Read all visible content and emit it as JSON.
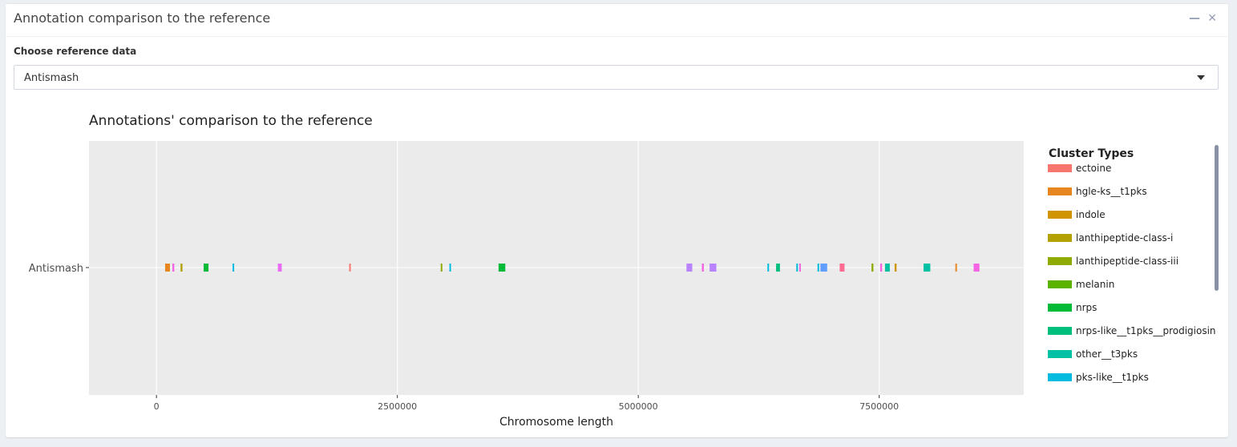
{
  "panel": {
    "title": "Annotation comparison to the reference",
    "minimize_icon": "minus-icon",
    "close_icon": "close-icon"
  },
  "reference_select": {
    "label": "Choose reference data",
    "value": "Antismash"
  },
  "chart_data": {
    "type": "scatter",
    "title": "Annotations' comparison to the reference",
    "xlabel": "Chromosome length",
    "ylabel": "",
    "xlim": [
      -700000,
      9000000
    ],
    "xticks": [
      0,
      2500000,
      5000000,
      7500000
    ],
    "xtick_labels": [
      "0",
      "2500000",
      "5000000",
      "7500000"
    ],
    "categories": [
      "Antismash"
    ],
    "grid": true,
    "legend_title": "Cluster Types",
    "legend_position": "right",
    "legend_entries": [
      {
        "name": "ectoine",
        "color": "#F8766D"
      },
      {
        "name": "hgle-ks__t1pks",
        "color": "#E7851E"
      },
      {
        "name": "indole",
        "color": "#D09400"
      },
      {
        "name": "lanthipeptide-class-i",
        "color": "#B2A100"
      },
      {
        "name": "lanthipeptide-class-iii",
        "color": "#8FAA00"
      },
      {
        "name": "melanin",
        "color": "#5BB300"
      },
      {
        "name": "nrps",
        "color": "#00BA38"
      },
      {
        "name": "nrps-like__t1pks__prodigiosin",
        "color": "#00BF7D"
      },
      {
        "name": "other__t3pks",
        "color": "#00C1A3"
      },
      {
        "name": "pks-like__t1pks",
        "color": "#00BAE0"
      }
    ],
    "regions": [
      {
        "start": 90000,
        "end": 140000,
        "color": "#E7851E"
      },
      {
        "start": 165000,
        "end": 185000,
        "color": "#F564E3"
      },
      {
        "start": 250000,
        "end": 270000,
        "color": "#B2A100"
      },
      {
        "start": 490000,
        "end": 540000,
        "color": "#00BA38"
      },
      {
        "start": 790000,
        "end": 805000,
        "color": "#00BAE0"
      },
      {
        "start": 1260000,
        "end": 1300000,
        "color": "#E76BF3"
      },
      {
        "start": 2000000,
        "end": 2015000,
        "color": "#F8766D"
      },
      {
        "start": 2950000,
        "end": 2965000,
        "color": "#8FAA00"
      },
      {
        "start": 3040000,
        "end": 3055000,
        "color": "#00BAE0"
      },
      {
        "start": 3550000,
        "end": 3620000,
        "color": "#00BA38"
      },
      {
        "start": 5500000,
        "end": 5560000,
        "color": "#B983FF"
      },
      {
        "start": 5660000,
        "end": 5680000,
        "color": "#F564E3"
      },
      {
        "start": 5740000,
        "end": 5810000,
        "color": "#B983FF"
      },
      {
        "start": 6340000,
        "end": 6355000,
        "color": "#00BAE0"
      },
      {
        "start": 6430000,
        "end": 6470000,
        "color": "#00BF7D"
      },
      {
        "start": 6640000,
        "end": 6655000,
        "color": "#00BAE0"
      },
      {
        "start": 6670000,
        "end": 6685000,
        "color": "#F564E3"
      },
      {
        "start": 6860000,
        "end": 6875000,
        "color": "#00BAE0"
      },
      {
        "start": 6890000,
        "end": 6960000,
        "color": "#619CFF"
      },
      {
        "start": 7090000,
        "end": 7140000,
        "color": "#FF6C91"
      },
      {
        "start": 7420000,
        "end": 7440000,
        "color": "#8FAA00"
      },
      {
        "start": 7510000,
        "end": 7530000,
        "color": "#F564E3"
      },
      {
        "start": 7560000,
        "end": 7610000,
        "color": "#00C1A3"
      },
      {
        "start": 7660000,
        "end": 7680000,
        "color": "#D09400"
      },
      {
        "start": 7960000,
        "end": 8030000,
        "color": "#00C1A3"
      },
      {
        "start": 8290000,
        "end": 8305000,
        "color": "#E7851E"
      },
      {
        "start": 8480000,
        "end": 8540000,
        "color": "#F564E3"
      }
    ]
  }
}
